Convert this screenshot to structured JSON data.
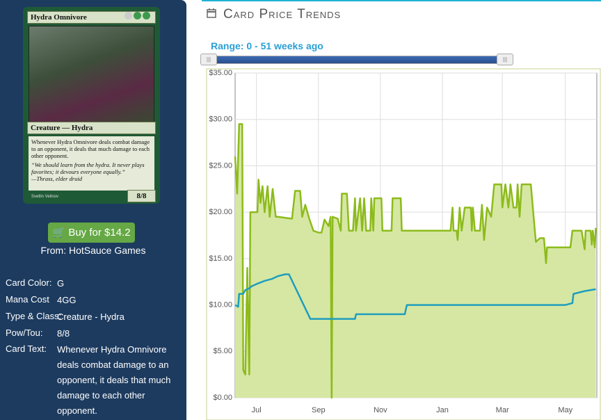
{
  "card": {
    "name": "Hydra Omnivore",
    "type_line": "Creature — Hydra",
    "rules_text": "Whenever Hydra Omnivore deals combat damage to an opponent, it deals that much damage to each other opponent.",
    "flavor_text": "“We should learn from the hydra. It never plays favorites; it devours everyone equally.”",
    "flavor_author": "—Thrass, elder druid",
    "power_toughness": "8/8",
    "artist": "Svetlin Velinov"
  },
  "buy": {
    "button": "Buy for $14.2",
    "seller": "From: HotSauce Games"
  },
  "details": [
    {
      "label": "Card Color:",
      "value": "G"
    },
    {
      "label": "Mana Cost",
      "value": "4GG"
    },
    {
      "label": "Type & Class:",
      "value": "Creature - Hydra"
    },
    {
      "label": "Pow/Tou:",
      "value": "8/8"
    },
    {
      "label": "Card Text:",
      "value": "Whenever Hydra Omnivore deals combat damage to an opponent, it deals that much damage to each other opponent."
    }
  ],
  "section_title": "Card Price Trends",
  "range_label": "Range: 0 - 51 weeks ago",
  "chart_data": {
    "type": "line",
    "xlim": [
      0,
      356
    ],
    "xticks": [
      {
        "value": 21,
        "label": "Jul"
      },
      {
        "value": 82,
        "label": "Sep"
      },
      {
        "value": 143,
        "label": "Nov"
      },
      {
        "value": 204,
        "label": "Jan"
      },
      {
        "value": 263,
        "label": "Mar"
      },
      {
        "value": 325,
        "label": "May"
      }
    ],
    "ylim": [
      0,
      35
    ],
    "yticks": [
      {
        "value": 0,
        "label": "$0.00"
      },
      {
        "value": 5,
        "label": "$5.00"
      },
      {
        "value": 10,
        "label": "$10.00"
      },
      {
        "value": 15,
        "label": "$15.00"
      },
      {
        "value": 20,
        "label": "$20.00"
      },
      {
        "value": 25,
        "label": "$25.00"
      },
      {
        "value": 30,
        "label": "$30.00"
      },
      {
        "value": 35,
        "label": "$35.00"
      }
    ],
    "grid": true,
    "series": [
      {
        "color": "#8dbb1c",
        "area": true,
        "area_color": "#d6e7a3",
        "x": [
          0,
          2,
          4,
          7,
          8,
          10,
          12,
          14,
          15,
          22,
          23,
          25,
          27,
          29,
          32,
          34,
          37,
          40,
          42,
          56,
          59,
          64,
          66,
          69,
          73,
          77,
          82,
          85,
          88,
          92,
          94,
          95,
          96,
          101,
          104,
          105,
          110,
          112,
          116,
          118,
          119,
          123,
          125,
          127,
          129,
          133,
          134,
          136,
          137,
          144,
          145,
          154,
          155,
          163,
          164,
          212,
          214,
          215,
          218,
          219,
          221,
          223,
          226,
          232,
          233,
          234,
          236,
          241,
          243,
          245,
          248,
          252,
          255,
          262,
          263,
          266,
          269,
          271,
          274,
          277,
          278,
          280,
          282,
          291,
          295,
          296,
          300,
          304,
          306,
          307,
          330,
          332,
          341,
          344,
          345,
          350,
          351,
          352,
          354,
          355
        ],
        "values": [
          26,
          22,
          29.5,
          29.5,
          3,
          2.5,
          14,
          2.5,
          20,
          20,
          23.5,
          21,
          22.8,
          20,
          22.8,
          19.5,
          22.5,
          19.5,
          19.5,
          19.3,
          22.3,
          22.3,
          19.5,
          20.8,
          19.3,
          18,
          17.8,
          17.8,
          19.2,
          18.5,
          19.5,
          0,
          19.5,
          19.3,
          18,
          22,
          22,
          18,
          18,
          21.5,
          18,
          21.5,
          18,
          21.5,
          18,
          18,
          21.5,
          18,
          21.5,
          21.5,
          18,
          18,
          21.5,
          21.5,
          18,
          18,
          20.5,
          18,
          18,
          17,
          20.5,
          18,
          20.5,
          20.5,
          18,
          20.5,
          18,
          18,
          20.8,
          17,
          20.5,
          19.5,
          23,
          23,
          20.5,
          23,
          20.5,
          23,
          20.5,
          20.5,
          23,
          19.5,
          23,
          23,
          18,
          16.8,
          17.2,
          17.2,
          14.5,
          16.2,
          16.2,
          18,
          18,
          16,
          18,
          18,
          16.5,
          18,
          16.2,
          18.3
        ]
      },
      {
        "color": "#1f9dbd",
        "area": false,
        "x": [
          0,
          3,
          4,
          8,
          10,
          14,
          16,
          22,
          29,
          36,
          42,
          49,
          53,
          74,
          118,
          119,
          167,
          169,
          325,
          332,
          333,
          344,
          355
        ],
        "values": [
          10,
          9.8,
          11.2,
          11.2,
          11.6,
          11.8,
          12,
          12.3,
          12.6,
          12.8,
          13.1,
          13.3,
          13.3,
          8.5,
          8.5,
          9,
          9,
          10,
          10,
          10.2,
          11.2,
          11.5,
          11.7
        ]
      }
    ]
  }
}
